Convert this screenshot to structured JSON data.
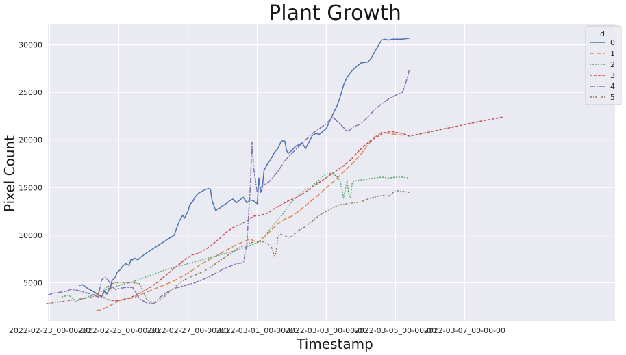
{
  "chart_data": {
    "type": "line",
    "title": "Plant Growth",
    "xlabel": "Timestamp",
    "ylabel": "Pixel Count",
    "xlim": [
      -0.05,
      16.35
    ],
    "ylim": [
      1000,
      32200
    ],
    "x_ticks": [
      {
        "x": 0,
        "label": "2022-02-23_00-00-00"
      },
      {
        "x": 2,
        "label": "2022-02-25_00-00-00"
      },
      {
        "x": 4,
        "label": "2022-02-27_00-00-00"
      },
      {
        "x": 6,
        "label": "2022-03-01_00-00-00"
      },
      {
        "x": 8,
        "label": "2022-03-03_00-00-00"
      },
      {
        "x": 10,
        "label": "2022-03-05_00-00-00"
      },
      {
        "x": 12,
        "label": "2022-03-07_00-00-00"
      }
    ],
    "y_ticks": [
      5000,
      10000,
      15000,
      20000,
      25000,
      30000
    ],
    "grid": true,
    "legend": {
      "title": "id",
      "position": "top-right"
    },
    "series": [
      {
        "name": "0",
        "color": "#4c72b0",
        "dash": "",
        "x": [
          0.85,
          0.95,
          1.1,
          1.3,
          1.5,
          1.6,
          1.65,
          1.75,
          1.8,
          1.9,
          1.95,
          2.05,
          2.1,
          2.2,
          2.3,
          2.35,
          2.4,
          2.45,
          2.5,
          2.55,
          2.6,
          2.75,
          3.0,
          3.3,
          3.6,
          3.7,
          3.75,
          3.85,
          3.9,
          4.0,
          4.05,
          4.15,
          4.2,
          4.3,
          4.4,
          4.5,
          4.6,
          4.65,
          4.7,
          4.8,
          4.9,
          5.0,
          5.1,
          5.2,
          5.3,
          5.4,
          5.5,
          5.6,
          5.7,
          5.8,
          5.9,
          6.0,
          6.05,
          6.1,
          6.15,
          6.2,
          6.3,
          6.4,
          6.5,
          6.6,
          6.7,
          6.8,
          6.85,
          6.9,
          7.0,
          7.1,
          7.2,
          7.3,
          7.4,
          7.5,
          7.6,
          7.7,
          7.8,
          7.9,
          8.0,
          8.1,
          8.2,
          8.3,
          8.4,
          8.5,
          8.6,
          8.7,
          8.8,
          9.0,
          9.2,
          9.3,
          9.4,
          9.5,
          9.6,
          9.7,
          9.8,
          9.9,
          10.0,
          10.2,
          10.4
        ],
        "y": [
          4700,
          4800,
          4400,
          4000,
          3500,
          4200,
          3800,
          4500,
          5200,
          5600,
          6100,
          6400,
          6700,
          7000,
          6800,
          7500,
          7400,
          7600,
          7500,
          7400,
          7600,
          8000,
          8600,
          9300,
          10000,
          11000,
          11500,
          12100,
          11800,
          12500,
          13200,
          13600,
          14000,
          14400,
          14600,
          14800,
          14900,
          14800,
          13600,
          12600,
          12800,
          13100,
          13300,
          13600,
          13800,
          13400,
          13700,
          14000,
          13400,
          13700,
          13600,
          13300,
          16000,
          14500,
          15000,
          16800,
          17500,
          18000,
          18700,
          19100,
          19900,
          19900,
          18900,
          18600,
          18900,
          19300,
          19500,
          19700,
          19100,
          19800,
          20500,
          20700,
          20600,
          20900,
          21200,
          22000,
          22800,
          23500,
          24500,
          25800,
          26600,
          27100,
          27500,
          28100,
          28200,
          28600,
          29300,
          29900,
          30500,
          30600,
          30500,
          30600,
          30600,
          30600,
          30700
        ]
      },
      {
        "name": "1",
        "color": "#dd8452",
        "dash": "7,3",
        "x": [
          1.35,
          1.5,
          1.7,
          1.9,
          2.0,
          2.2,
          2.4,
          2.6,
          2.8,
          3.0,
          3.2,
          3.4,
          3.6,
          3.8,
          4.0,
          4.2,
          4.4,
          4.6,
          4.8,
          5.0,
          5.2,
          5.4,
          5.6,
          5.8,
          6.0,
          6.2,
          6.4,
          6.6,
          6.8,
          7.0,
          7.2,
          7.4,
          7.6,
          7.8,
          8.0,
          8.2,
          8.4,
          8.6,
          8.8,
          9.0,
          9.2,
          9.4,
          9.6,
          9.8,
          10.0,
          10.2
        ],
        "y": [
          2100,
          2150,
          2500,
          2900,
          3100,
          3300,
          3400,
          3700,
          4000,
          4300,
          4600,
          4900,
          5200,
          5600,
          6000,
          6500,
          7000,
          7400,
          7800,
          8200,
          8600,
          9000,
          9300,
          9600,
          9200,
          9800,
          10500,
          11200,
          11700,
          12000,
          12500,
          13100,
          13700,
          14300,
          15000,
          15600,
          16300,
          17000,
          17700,
          18500,
          19500,
          20300,
          20800,
          20700,
          20600,
          20500
        ]
      },
      {
        "name": "2",
        "color": "#55a868",
        "dash": "2,2",
        "x": [
          0.35,
          0.55,
          0.65,
          0.75,
          0.9,
          1.1,
          1.3,
          1.5,
          1.7,
          1.9,
          2.1,
          2.4,
          2.7,
          3.0,
          3.3,
          3.6,
          3.9,
          4.2,
          4.5,
          4.8,
          5.1,
          5.4,
          5.7,
          6.0,
          6.2,
          6.4,
          6.6,
          6.8,
          7.0,
          7.2,
          7.4,
          7.6,
          7.8,
          7.9,
          8.0,
          8.1,
          8.2,
          8.3,
          8.4,
          8.5,
          8.6,
          8.65,
          8.7,
          8.75,
          8.8,
          9.0,
          9.2,
          9.4,
          9.6,
          9.8,
          10.0,
          10.2,
          10.4
        ],
        "y": [
          3500,
          3700,
          3400,
          3000,
          3300,
          3500,
          3800,
          4100,
          4400,
          4600,
          4800,
          5100,
          5500,
          5900,
          6300,
          6600,
          6900,
          7200,
          7500,
          7800,
          8100,
          8400,
          8800,
          9200,
          9800,
          10800,
          11600,
          12500,
          13500,
          14200,
          14800,
          15200,
          15800,
          16200,
          16400,
          16500,
          16400,
          16200,
          15700,
          13900,
          15800,
          14200,
          13900,
          15500,
          15700,
          15800,
          15900,
          16000,
          16100,
          16000,
          16100,
          16100,
          16000
        ]
      },
      {
        "name": "3",
        "color": "#c44e52",
        "dash": "4,2",
        "x": [
          1.35,
          1.5,
          1.7,
          1.9,
          2.1,
          2.3,
          2.5,
          2.7,
          2.9,
          3.1,
          3.3,
          3.5,
          3.7,
          3.9,
          4.1,
          4.3,
          4.5,
          4.7,
          4.9,
          5.1,
          5.3,
          5.5,
          5.7,
          5.9,
          6.1,
          6.3,
          6.5,
          6.7,
          6.9,
          7.1,
          7.3,
          7.5,
          7.7,
          7.9,
          8.1,
          8.3,
          8.5,
          8.7,
          8.9,
          9.1,
          9.3,
          9.5,
          9.7,
          9.9,
          10.0,
          10.2,
          10.4,
          12.5,
          13.1
        ],
        "y": [
          3900,
          3600,
          3200,
          3100,
          3200,
          3400,
          3700,
          4100,
          4500,
          5000,
          5600,
          6200,
          6800,
          7400,
          7900,
          8100,
          8500,
          9000,
          9600,
          10300,
          10800,
          11100,
          11500,
          12000,
          12100,
          12300,
          12800,
          13200,
          13600,
          13900,
          14300,
          14800,
          15300,
          15800,
          16300,
          16800,
          17300,
          17900,
          18700,
          19400,
          20000,
          20400,
          20800,
          20900,
          20800,
          20700,
          20400,
          22000,
          22400
        ]
      },
      {
        "name": "4",
        "color": "#8172b3",
        "dash": "8,2,2,2",
        "x": [
          -0.05,
          0.1,
          0.3,
          0.5,
          0.6,
          0.8,
          1.0,
          1.2,
          1.4,
          1.5,
          1.6,
          1.7,
          1.8,
          1.9,
          2.0,
          2.2,
          2.4,
          2.6,
          2.8,
          3.0,
          3.2,
          3.4,
          3.6,
          3.8,
          4.0,
          4.2,
          4.4,
          4.6,
          4.8,
          5.0,
          5.2,
          5.4,
          5.6,
          5.7,
          5.8,
          5.85,
          5.9,
          6.0,
          6.05,
          6.1,
          6.2,
          6.3,
          6.4,
          6.6,
          6.8,
          7.0,
          7.2,
          7.4,
          7.6,
          7.8,
          8.0,
          8.1,
          8.2,
          8.3,
          8.4,
          8.5,
          8.6,
          8.7,
          8.8,
          9.0,
          9.2,
          9.4,
          9.6,
          9.8,
          10.0,
          10.2,
          10.3,
          10.4
        ],
        "y": [
          3700,
          3900,
          4000,
          4100,
          4300,
          4200,
          4000,
          3800,
          3500,
          5300,
          5600,
          5200,
          4600,
          4300,
          4400,
          4500,
          4500,
          3300,
          2900,
          2800,
          3500,
          4000,
          4400,
          4600,
          4800,
          5000,
          5300,
          5600,
          6000,
          6400,
          6700,
          7000,
          7100,
          9000,
          15000,
          19800,
          17000,
          14500,
          14800,
          15000,
          15300,
          15500,
          15800,
          16700,
          17800,
          18600,
          19300,
          20000,
          20700,
          21200,
          21700,
          22100,
          22400,
          22000,
          21700,
          21300,
          20900,
          21100,
          21400,
          21700,
          22400,
          23200,
          23800,
          24300,
          24700,
          25000,
          26000,
          27400
        ]
      },
      {
        "name": "5",
        "color": "#937860",
        "dash": "3,2,1,2",
        "x": [
          -0.1,
          0.1,
          0.3,
          0.5,
          0.7,
          0.9,
          1.1,
          1.3,
          1.5,
          1.6,
          1.7,
          1.75,
          1.8,
          1.9,
          2.0,
          2.2,
          2.4,
          2.6,
          2.7,
          2.8,
          3.0,
          3.2,
          3.4,
          3.6,
          3.8,
          4.0,
          4.2,
          4.4,
          4.6,
          4.8,
          5.0,
          5.2,
          5.4,
          5.6,
          5.8,
          6.0,
          6.2,
          6.4,
          6.5,
          6.55,
          6.6,
          6.7,
          6.8,
          6.9,
          7.0,
          7.2,
          7.4,
          7.6,
          7.8,
          8.0,
          8.2,
          8.4,
          8.6,
          8.8,
          9.0,
          9.2,
          9.4,
          9.6,
          9.8,
          10.0,
          10.2,
          10.4
        ],
        "y": [
          2800,
          2900,
          3000,
          3100,
          3200,
          3300,
          3400,
          3600,
          3600,
          4400,
          4700,
          4100,
          4900,
          5000,
          5000,
          5000,
          5000,
          4900,
          4200,
          3300,
          2800,
          3200,
          3800,
          4500,
          5100,
          5500,
          5800,
          6100,
          6500,
          7000,
          7500,
          8000,
          8500,
          8900,
          9200,
          9300,
          9300,
          8900,
          7800,
          8200,
          9900,
          10100,
          10000,
          9700,
          9900,
          10500,
          10900,
          11500,
          12100,
          12500,
          12900,
          13200,
          13300,
          13400,
          13500,
          13800,
          14000,
          14200,
          14100,
          14700,
          14600,
          14500
        ]
      }
    ]
  }
}
